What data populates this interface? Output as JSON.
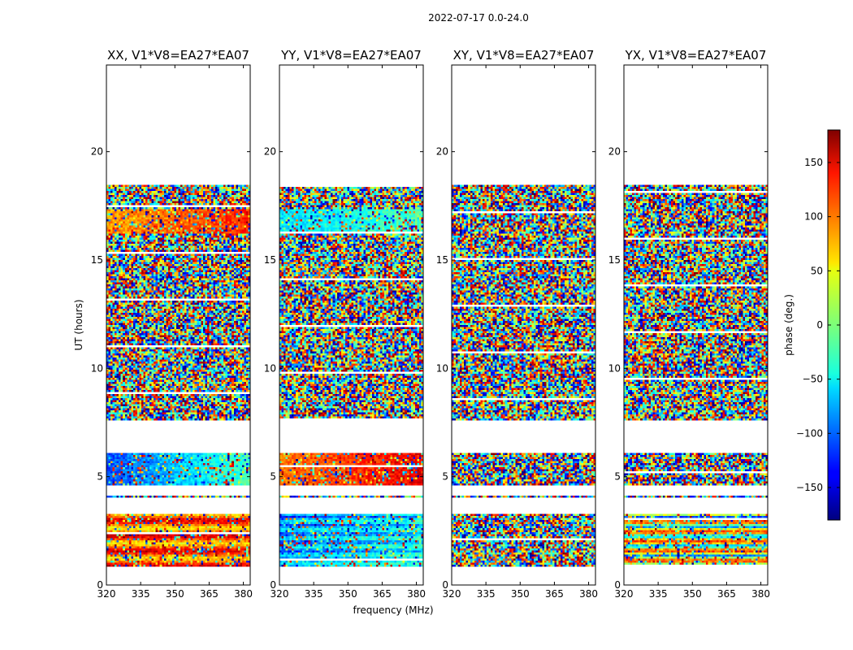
{
  "suptitle": "2022-07-17 0.0-24.0",
  "chart_data": {
    "type": "heatmap",
    "xlabel": "frequency (MHz)",
    "ylabel": "UT (hours)",
    "xlim": [
      320,
      383
    ],
    "ylim": [
      0,
      24
    ],
    "xticks": [
      320,
      335,
      350,
      365,
      380
    ],
    "yticks": [
      0,
      5,
      10,
      15,
      20
    ],
    "panels": [
      {
        "title": "XX, V1*V8=EA27*EA07",
        "pattern": "xx"
      },
      {
        "title": "YY, V1*V8=EA27*EA07",
        "pattern": "yy"
      },
      {
        "title": "XY, V1*V8=EA27*EA07",
        "pattern": "noise"
      },
      {
        "title": "YX, V1*V8=EA27*EA07",
        "pattern": "yx"
      }
    ],
    "data_time_ranges": [
      [
        0.85,
        3.3
      ],
      [
        4.05,
        4.12
      ],
      [
        4.6,
        6.05
      ],
      [
        7.55,
        18.5
      ]
    ],
    "colorbar": {
      "label": "phase (deg.)",
      "range": [
        -180,
        180
      ],
      "ticks": [
        -150,
        -100,
        -50,
        0,
        50,
        100,
        150
      ],
      "tick_labels": [
        "−150",
        "−100",
        "−50",
        "0",
        "50",
        "100",
        "150"
      ],
      "colormap": "jet"
    }
  }
}
